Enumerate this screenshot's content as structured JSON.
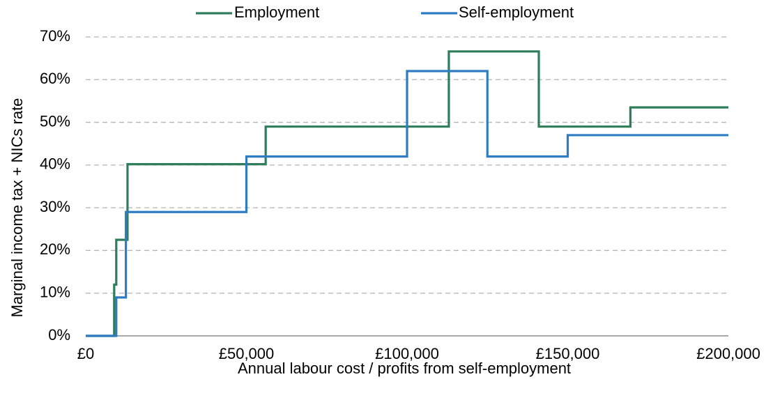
{
  "chart_data": {
    "type": "line",
    "step": true,
    "title": "",
    "xlabel": "Annual labour cost / profits from self-employment",
    "ylabel": "Marginal income tax + NICs rate",
    "xlim": [
      0,
      200000
    ],
    "ylim": [
      0,
      0.7
    ],
    "x_ticks": [
      0,
      50000,
      100000,
      150000,
      200000
    ],
    "x_tick_labels": [
      "£0",
      "£50,000",
      "£100,000",
      "£150,000",
      "£200,000"
    ],
    "y_ticks": [
      0,
      0.1,
      0.2,
      0.3,
      0.4,
      0.5,
      0.6,
      0.7
    ],
    "y_tick_labels": [
      "0%",
      "10%",
      "20%",
      "30%",
      "40%",
      "50%",
      "60%",
      "70%"
    ],
    "grid": "horizontal dashed",
    "legend_position": "top",
    "series": [
      {
        "name": "Employment",
        "color": "#2e7d5b",
        "x": [
          0,
          8850,
          9500,
          13000,
          56000,
          113000,
          141000,
          169500,
          200000
        ],
        "y": [
          0,
          0.12,
          0.225,
          0.402,
          0.49,
          0.666,
          0.49,
          0.535,
          0.535
        ]
      },
      {
        "name": "Self-employment",
        "color": "#2e7cc2",
        "x": [
          0,
          9500,
          12500,
          50000,
          100000,
          125000,
          150000,
          200000
        ],
        "y": [
          0,
          0.09,
          0.29,
          0.42,
          0.62,
          0.42,
          0.47,
          0.47
        ]
      }
    ]
  }
}
